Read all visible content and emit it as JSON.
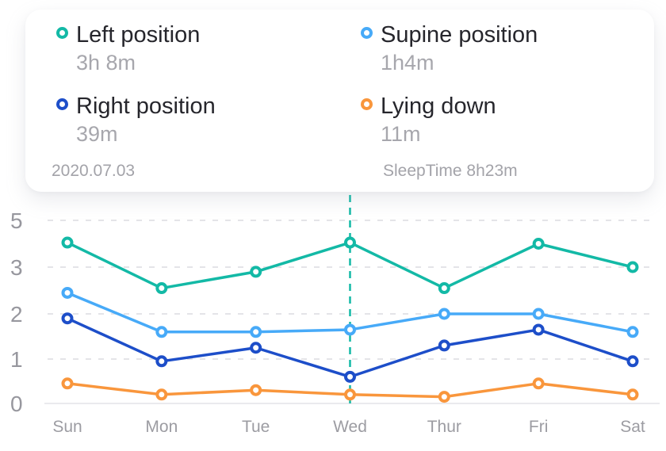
{
  "card": {
    "legend": {
      "items": [
        {
          "label": "Left position",
          "value": "3h 8m",
          "color": "#13b9a6"
        },
        {
          "label": "Supine position",
          "value": "1h4m",
          "color": "#47aaf8"
        },
        {
          "label": "Right position",
          "value": "39m",
          "color": "#1d4ec9"
        },
        {
          "label": "Lying down",
          "value": "11m",
          "color": "#f9963c"
        }
      ]
    },
    "date": "2020.07.03",
    "sleep_time": "SleepTime 8h23m"
  },
  "chart_data": {
    "type": "line",
    "x": [
      "Sun",
      "Mon",
      "Tue",
      "Wed",
      "Thur",
      "Fri",
      "Sat"
    ],
    "series": [
      {
        "name": "Left position",
        "color": "#13b9a6",
        "values": [
          4.05,
          2.55,
          2.9,
          4.05,
          2.55,
          4.0,
          3.0
        ]
      },
      {
        "name": "Supine position",
        "color": "#47aaf8",
        "values": [
          2.45,
          1.6,
          1.6,
          1.65,
          2.0,
          2.0,
          1.6
        ]
      },
      {
        "name": "Right position",
        "color": "#1d4ec9",
        "values": [
          1.9,
          0.95,
          1.25,
          0.6,
          1.3,
          1.65,
          0.95
        ]
      },
      {
        "name": "Lying down",
        "color": "#f9963c",
        "values": [
          0.45,
          0.2,
          0.3,
          0.2,
          0.15,
          0.45,
          0.2
        ]
      }
    ],
    "y_ticks": [
      5,
      3,
      2,
      1,
      0
    ],
    "ylim": [
      0,
      5
    ],
    "axis_scale": "y ticks 5,3,2,1,0 drawn equally spaced (non-linear 3-to-5 span)",
    "grid": "dashed horizontal gridlines, solid baseline at 0",
    "selected_x": "Wed",
    "selected_index": 3,
    "selected_line_style": "vertical teal dashed line",
    "legend_position": "top card, 2x2 grid",
    "marker_style": "open ring markers",
    "colors": {
      "grid": "#e4e4e8",
      "axis": "#eaeaee",
      "y_label": "#97979e",
      "x_label": "#9c9ca2"
    }
  }
}
